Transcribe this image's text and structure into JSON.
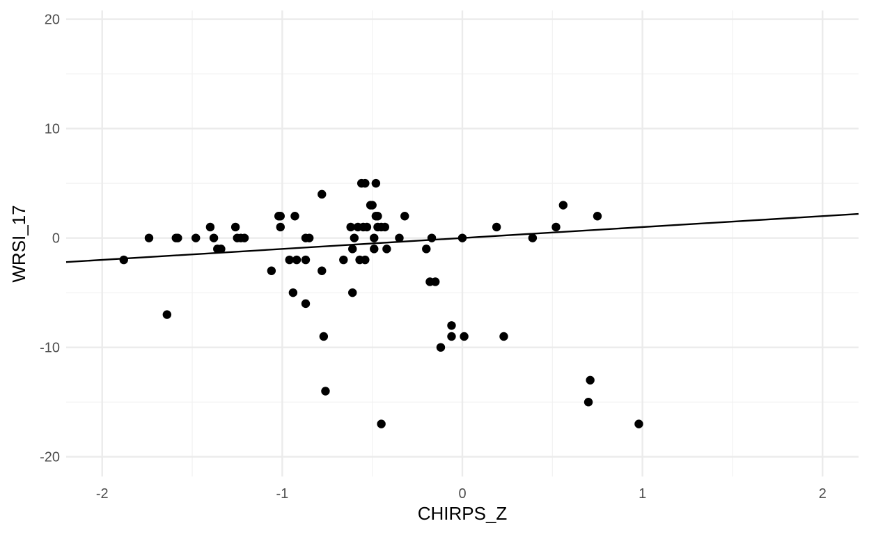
{
  "chart_data": {
    "type": "scatter",
    "title": "",
    "xlabel": "CHIRPS_Z",
    "ylabel": "WRSI_17",
    "xlim": [
      -2.2,
      2.2
    ],
    "ylim": [
      -21.8,
      20.8
    ],
    "x_ticks": [
      -2,
      -1,
      0,
      1,
      2
    ],
    "x_tick_labels": [
      "-2",
      "-1",
      "0",
      "1",
      "2"
    ],
    "y_ticks": [
      -20,
      -10,
      0,
      10,
      20
    ],
    "y_tick_labels": [
      "-20",
      "-10",
      "0",
      "10",
      "20"
    ],
    "grid": true,
    "legend": "none",
    "colors": {
      "points": "#000000",
      "line": "#000000",
      "grid_major": "#ebebeb",
      "grid_minor": "#f2f2f2"
    },
    "points": [
      {
        "x": -1.88,
        "y": -2
      },
      {
        "x": -1.74,
        "y": 0
      },
      {
        "x": -1.64,
        "y": -7
      },
      {
        "x": -1.59,
        "y": 0
      },
      {
        "x": -1.58,
        "y": 0
      },
      {
        "x": -1.48,
        "y": 0
      },
      {
        "x": -1.4,
        "y": 1
      },
      {
        "x": -1.38,
        "y": 0
      },
      {
        "x": -1.36,
        "y": -1
      },
      {
        "x": -1.34,
        "y": -1
      },
      {
        "x": -1.26,
        "y": 1
      },
      {
        "x": -1.25,
        "y": 0
      },
      {
        "x": -1.23,
        "y": 0
      },
      {
        "x": -1.21,
        "y": 0
      },
      {
        "x": -1.06,
        "y": -3
      },
      {
        "x": -1.02,
        "y": 2
      },
      {
        "x": -1.01,
        "y": 2
      },
      {
        "x": -1.01,
        "y": 1
      },
      {
        "x": -0.96,
        "y": -2
      },
      {
        "x": -0.94,
        "y": -5
      },
      {
        "x": -0.93,
        "y": 2
      },
      {
        "x": -0.92,
        "y": -2
      },
      {
        "x": -0.87,
        "y": -6
      },
      {
        "x": -0.87,
        "y": -2
      },
      {
        "x": -0.87,
        "y": 0
      },
      {
        "x": -0.85,
        "y": 0
      },
      {
        "x": -0.78,
        "y": -3
      },
      {
        "x": -0.78,
        "y": 4
      },
      {
        "x": -0.77,
        "y": -9
      },
      {
        "x": -0.76,
        "y": -14
      },
      {
        "x": -0.66,
        "y": -2
      },
      {
        "x": -0.62,
        "y": 1
      },
      {
        "x": -0.61,
        "y": -1
      },
      {
        "x": -0.61,
        "y": -5
      },
      {
        "x": -0.6,
        "y": 0
      },
      {
        "x": -0.58,
        "y": 1
      },
      {
        "x": -0.57,
        "y": -2
      },
      {
        "x": -0.56,
        "y": 5
      },
      {
        "x": -0.55,
        "y": 1
      },
      {
        "x": -0.54,
        "y": 5
      },
      {
        "x": -0.54,
        "y": -2
      },
      {
        "x": -0.53,
        "y": 1
      },
      {
        "x": -0.51,
        "y": 3
      },
      {
        "x": -0.5,
        "y": 3
      },
      {
        "x": -0.49,
        "y": 0
      },
      {
        "x": -0.49,
        "y": -1
      },
      {
        "x": -0.48,
        "y": 5
      },
      {
        "x": -0.48,
        "y": 2
      },
      {
        "x": -0.47,
        "y": 2
      },
      {
        "x": -0.47,
        "y": 1
      },
      {
        "x": -0.45,
        "y": 1
      },
      {
        "x": -0.45,
        "y": -17
      },
      {
        "x": -0.43,
        "y": 1
      },
      {
        "x": -0.42,
        "y": -1
      },
      {
        "x": -0.35,
        "y": 0
      },
      {
        "x": -0.32,
        "y": 2
      },
      {
        "x": -0.2,
        "y": -1
      },
      {
        "x": -0.18,
        "y": -4
      },
      {
        "x": -0.17,
        "y": 0
      },
      {
        "x": -0.15,
        "y": -4
      },
      {
        "x": -0.12,
        "y": -10
      },
      {
        "x": -0.06,
        "y": -8
      },
      {
        "x": -0.06,
        "y": -9
      },
      {
        "x": 0.0,
        "y": 0
      },
      {
        "x": 0.01,
        "y": -9
      },
      {
        "x": 0.19,
        "y": 1
      },
      {
        "x": 0.23,
        "y": -9
      },
      {
        "x": 0.39,
        "y": 0
      },
      {
        "x": 0.52,
        "y": 1
      },
      {
        "x": 0.56,
        "y": 3
      },
      {
        "x": 0.7,
        "y": -15
      },
      {
        "x": 0.71,
        "y": -13
      },
      {
        "x": 0.75,
        "y": 2
      },
      {
        "x": 0.98,
        "y": -17
      }
    ],
    "fit_line": {
      "x": [
        -2.2,
        2.2
      ],
      "y": [
        -2.2,
        2.2
      ]
    }
  }
}
